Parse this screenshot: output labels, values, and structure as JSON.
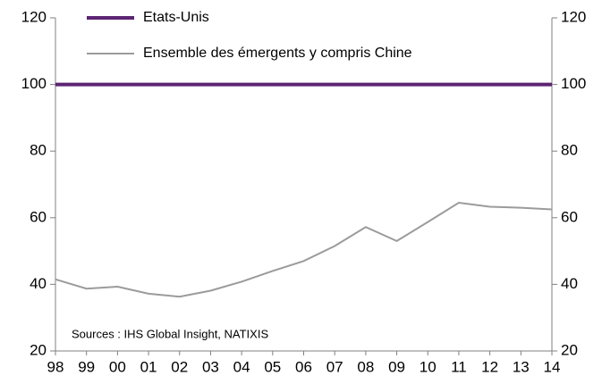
{
  "chart_data": {
    "type": "line",
    "annotation": "Sources : IHS Global Insight, NATIXIS",
    "categories": [
      "98",
      "99",
      "00",
      "01",
      "02",
      "03",
      "04",
      "05",
      "06",
      "07",
      "08",
      "09",
      "10",
      "11",
      "12",
      "13",
      "14"
    ],
    "series": [
      {
        "name": "Etats-Unis",
        "color": "#5c2473",
        "values": [
          100,
          100,
          100,
          100,
          100,
          100,
          100,
          100,
          100,
          100,
          100,
          100,
          100,
          100,
          100,
          100,
          100
        ]
      },
      {
        "name": "Ensemble des émergents y compris Chine",
        "color": "#9b9b9b",
        "values": [
          41.5,
          38.7,
          39.3,
          37.2,
          36.3,
          38.1,
          40.8,
          44,
          47,
          51.5,
          57.2,
          53,
          58.7,
          64.5,
          63.3,
          63,
          62.5
        ]
      }
    ],
    "ylim": [
      20,
      120
    ],
    "yticks": [
      20,
      40,
      60,
      80,
      100,
      120
    ],
    "y2lim": [
      20,
      120
    ],
    "y2ticks": [
      20,
      40,
      60,
      80,
      100,
      120
    ],
    "grid": false,
    "legend": "top-left"
  }
}
